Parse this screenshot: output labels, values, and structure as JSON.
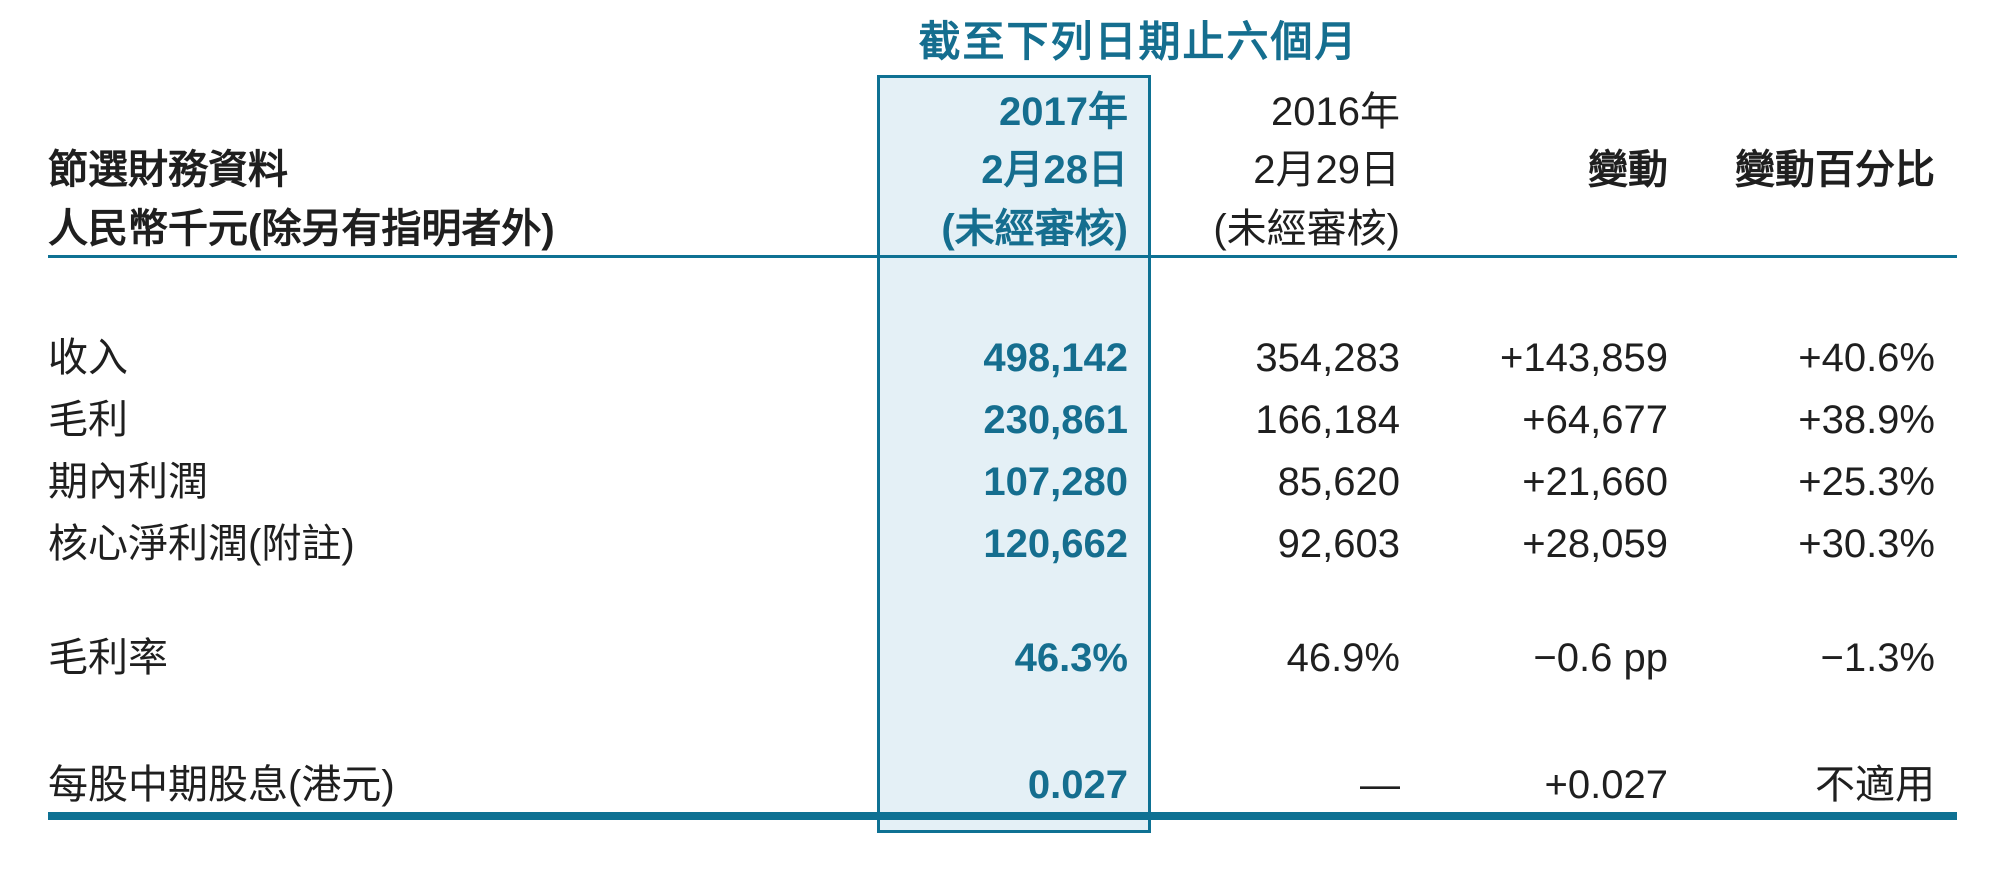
{
  "colors": {
    "accent_teal": "#0E7193",
    "teal_text": "#156E8F",
    "highlight_bg": "#E4F0F6",
    "text_black": "#1F1F1F"
  },
  "header": {
    "period_title": "截至下列日期止六個月",
    "label_line1": "節選財務資料",
    "label_line2": "人民幣千元(除另有指明者外)",
    "col_2017": {
      "year": "2017年",
      "date": "2月28日",
      "note": "(未經審核)"
    },
    "col_2016": {
      "year": "2016年",
      "date": "2月29日",
      "note": "(未經審核)"
    },
    "col_change": "變動",
    "col_change_pct": "變動百分比"
  },
  "rows": [
    {
      "label": "收入",
      "y2017": "498,142",
      "y2016": "354,283",
      "change": "+143,859",
      "change_pct": "+40.6%"
    },
    {
      "label": "毛利",
      "y2017": "230,861",
      "y2016": "166,184",
      "change": "+64,677",
      "change_pct": "+38.9%"
    },
    {
      "label": "期內利潤",
      "y2017": "107,280",
      "y2016": "85,620",
      "change": "+21,660",
      "change_pct": "+25.3%"
    },
    {
      "label": "核心淨利潤(附註)",
      "y2017": "120,662",
      "y2016": "92,603",
      "change": "+28,059",
      "change_pct": "+30.3%"
    },
    {
      "label": "毛利率",
      "y2017": "46.3%",
      "y2016": "46.9%",
      "change": "−0.6 pp",
      "change_pct": "−1.3%"
    },
    {
      "label": "每股中期股息(港元)",
      "y2017": "0.027",
      "y2016": "—",
      "change": "+0.027",
      "change_pct": "不適用"
    }
  ]
}
